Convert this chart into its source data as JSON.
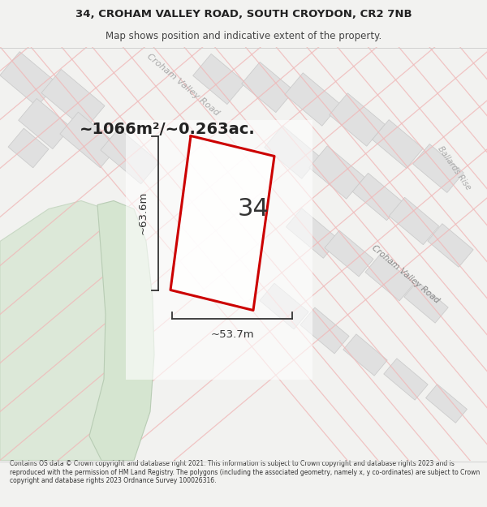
{
  "title_line1": "34, CROHAM VALLEY ROAD, SOUTH CROYDON, CR2 7NB",
  "title_line2": "Map shows position and indicative extent of the property.",
  "area_text": "~1066m²/~0.263ac.",
  "number_label": "34",
  "dim_height": "~63.6m",
  "dim_width": "~53.7m",
  "footer_text": "Contains OS data © Crown copyright and database right 2021. This information is subject to Crown copyright and database rights 2023 and is reproduced with the permission of HM Land Registry. The polygons (including the associated geometry, namely x, y co-ordinates) are subject to Crown copyright and database rights 2023 Ordnance Survey 100026316.",
  "bg_color": "#f2f2f0",
  "map_bg": "#f2f2f0",
  "block_fill": "#e0e0e0",
  "block_edge": "#cccccc",
  "green_fill": "#dce8d8",
  "green_edge": "#c8d8c4",
  "property_fill": "#ffffff",
  "property_outline": "#cc0000",
  "road_line": "#f0b8b8",
  "road_fill": "#f5f5f5",
  "road_label": "#aaaaaa",
  "dim_color": "#333333",
  "text_dark": "#222222",
  "footer_color": "#333333"
}
